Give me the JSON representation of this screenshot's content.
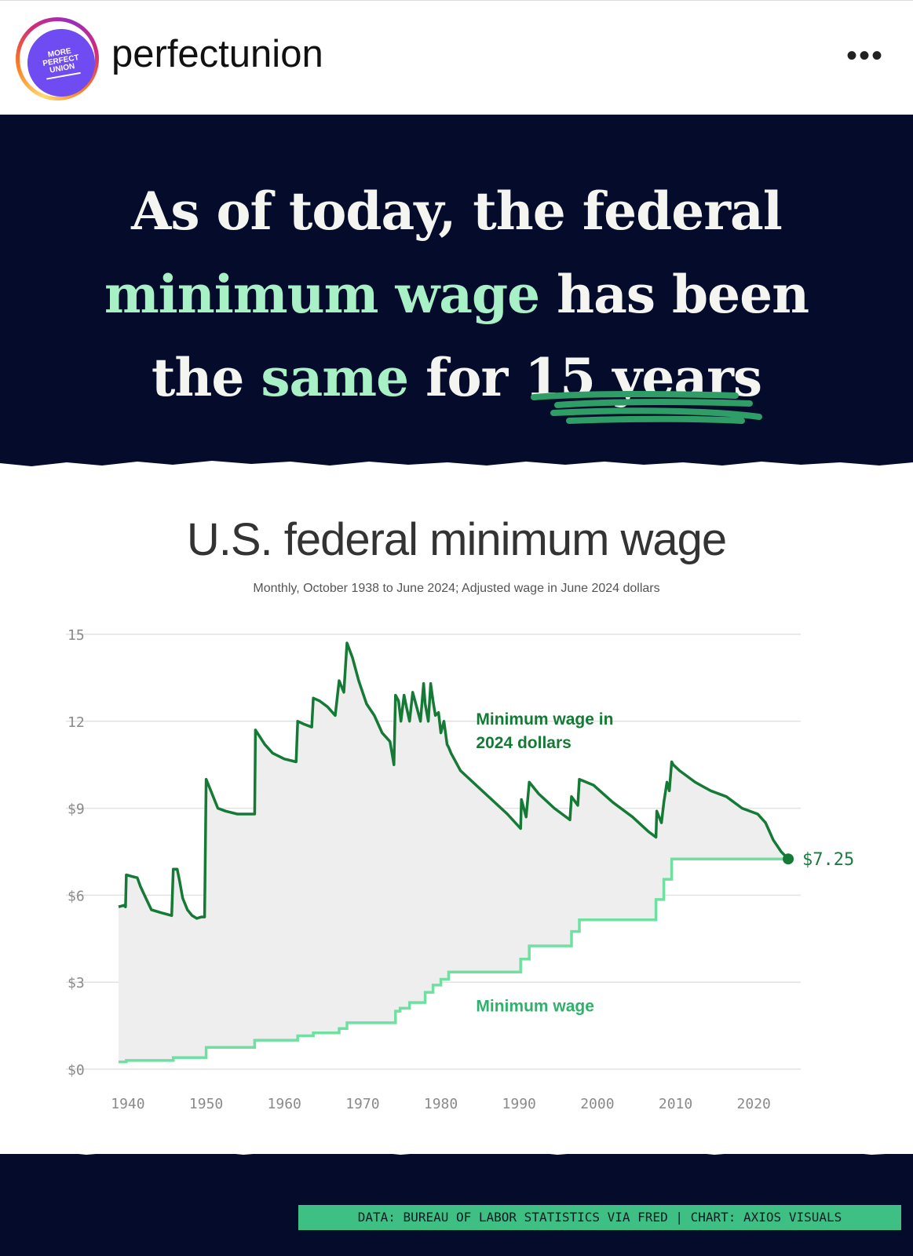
{
  "post": {
    "username": "perfectunion",
    "avatar_text": [
      "MORE",
      "PERFECT",
      "UNION"
    ],
    "menu_label": "•••"
  },
  "headline": {
    "l1": "As of today, the federal",
    "l2_highlight": "minimum wage",
    "l2_rest": " has been",
    "l3_a": "the ",
    "l3_highlight": "same",
    "l3_b": " for ",
    "l3_c": "15 years"
  },
  "colors": {
    "navy": "#050c2b",
    "mint": "#a8f0c6",
    "dark_green": "#157a35",
    "light_green": "#6fe0a0",
    "credit_bg": "#3ebf84"
  },
  "chart_data": {
    "type": "line",
    "title": "U.S. federal minimum wage",
    "subtitle": "Monthly, October 1938 to June 2024; Adjusted wage in June 2024 dollars",
    "xlabel": "",
    "ylabel": "",
    "xlim": [
      1937.5,
      2026
    ],
    "ylim": [
      0,
      15
    ],
    "x_ticks": [
      1940,
      1950,
      1960,
      1970,
      1980,
      1990,
      2000,
      2010,
      2020
    ],
    "x_tick_labels": [
      "1940",
      "1950",
      "1960",
      "1970",
      "1980",
      "1990",
      "2000",
      "2010",
      "2020"
    ],
    "y_ticks": [
      0,
      3,
      6,
      9,
      12,
      15
    ],
    "y_tick_labels": [
      "$0",
      "$3",
      "$6",
      "$9",
      "12",
      "15"
    ],
    "grid": true,
    "end_label": "$7.25",
    "series": [
      {
        "name": "Minimum wage in 2024 dollars",
        "label_lines": [
          "Minimum wage in",
          "2024 dollars"
        ],
        "x": [
          1938.8,
          1939.5,
          1939.7,
          1939.8,
          1940.5,
          1941.2,
          1941.6,
          1942.3,
          1943.0,
          1944.2,
          1945.6,
          1945.8,
          1946.3,
          1946.6,
          1947.0,
          1947.6,
          1948.2,
          1948.8,
          1949.4,
          1949.8,
          1950.0,
          1950.6,
          1951.5,
          1952.5,
          1954.0,
          1955.5,
          1956.2,
          1956.3,
          1957.5,
          1958.5,
          1960.0,
          1961.5,
          1961.7,
          1962.5,
          1963.5,
          1963.7,
          1964.5,
          1965.5,
          1966.5,
          1967.0,
          1967.6,
          1968.0,
          1968.7,
          1969.5,
          1970.5,
          1971.5,
          1972.5,
          1973.5,
          1974.0,
          1974.2,
          1974.6,
          1974.9,
          1975.3,
          1975.6,
          1976.0,
          1976.4,
          1976.9,
          1977.4,
          1977.8,
          1978.0,
          1978.4,
          1978.7,
          1979.0,
          1979.3,
          1979.7,
          1980.0,
          1980.4,
          1980.8,
          1981.0,
          1981.3,
          1982.5,
          1984.5,
          1986.5,
          1988.5,
          1990.2,
          1990.3,
          1990.9,
          1991.3,
          1992.5,
          1994.5,
          1996.5,
          1996.7,
          1997.5,
          1997.7,
          1999.5,
          2002.0,
          2004.5,
          2006.5,
          2007.5,
          2007.6,
          2008.2,
          2008.5,
          2008.9,
          2009.2,
          2009.5,
          2009.7,
          2010.5,
          2012.5,
          2014.5,
          2016.5,
          2018.5,
          2020.5,
          2021.5,
          2022.5,
          2023.5,
          2024.4
        ],
        "values": [
          5.6,
          5.65,
          5.6,
          6.7,
          6.65,
          6.6,
          6.3,
          5.9,
          5.5,
          5.4,
          5.3,
          6.9,
          6.9,
          6.5,
          5.9,
          5.5,
          5.3,
          5.2,
          5.25,
          5.25,
          10.0,
          9.6,
          9.0,
          8.9,
          8.8,
          8.8,
          8.8,
          11.7,
          11.2,
          10.9,
          10.7,
          10.6,
          12.0,
          11.9,
          11.8,
          12.8,
          12.7,
          12.5,
          12.2,
          13.4,
          13.0,
          14.7,
          14.2,
          13.4,
          12.6,
          12.2,
          11.6,
          11.3,
          10.5,
          12.9,
          12.7,
          12.0,
          12.9,
          12.5,
          12.0,
          13.0,
          12.5,
          12.0,
          13.3,
          12.6,
          12.0,
          13.3,
          12.7,
          12.2,
          12.3,
          11.6,
          12.0,
          11.2,
          11.1,
          10.9,
          10.3,
          9.8,
          9.3,
          8.8,
          8.3,
          9.3,
          8.7,
          9.9,
          9.5,
          9.0,
          8.6,
          9.4,
          9.1,
          10.0,
          9.8,
          9.2,
          8.7,
          8.2,
          8.0,
          8.9,
          8.5,
          9.2,
          9.9,
          9.6,
          10.6,
          10.5,
          10.3,
          9.9,
          9.6,
          9.4,
          9.0,
          8.8,
          8.5,
          7.9,
          7.5,
          7.25
        ]
      },
      {
        "name": "Minimum wage",
        "label_lines": [
          "Minimum wage"
        ],
        "step": true,
        "x": [
          1938.8,
          1939.8,
          1945.8,
          1950.0,
          1956.2,
          1961.7,
          1963.7,
          1967.0,
          1968.0,
          1974.2,
          1974.8,
          1976.0,
          1978.0,
          1979.0,
          1980.0,
          1981.0,
          1990.2,
          1990.8,
          1991.3,
          1996.7,
          1997.7,
          2007.5,
          2008.5,
          2009.5,
          2024.4
        ],
        "values": [
          0.25,
          0.3,
          0.4,
          0.75,
          1.0,
          1.15,
          1.25,
          1.4,
          1.6,
          2.0,
          2.1,
          2.3,
          2.65,
          2.9,
          3.1,
          3.35,
          3.8,
          3.8,
          4.25,
          4.75,
          5.15,
          5.85,
          6.55,
          7.25,
          7.25
        ]
      }
    ]
  },
  "credit": "DATA: BUREAU OF LABOR STATISTICS VIA FRED | CHART: AXIOS VISUALS"
}
